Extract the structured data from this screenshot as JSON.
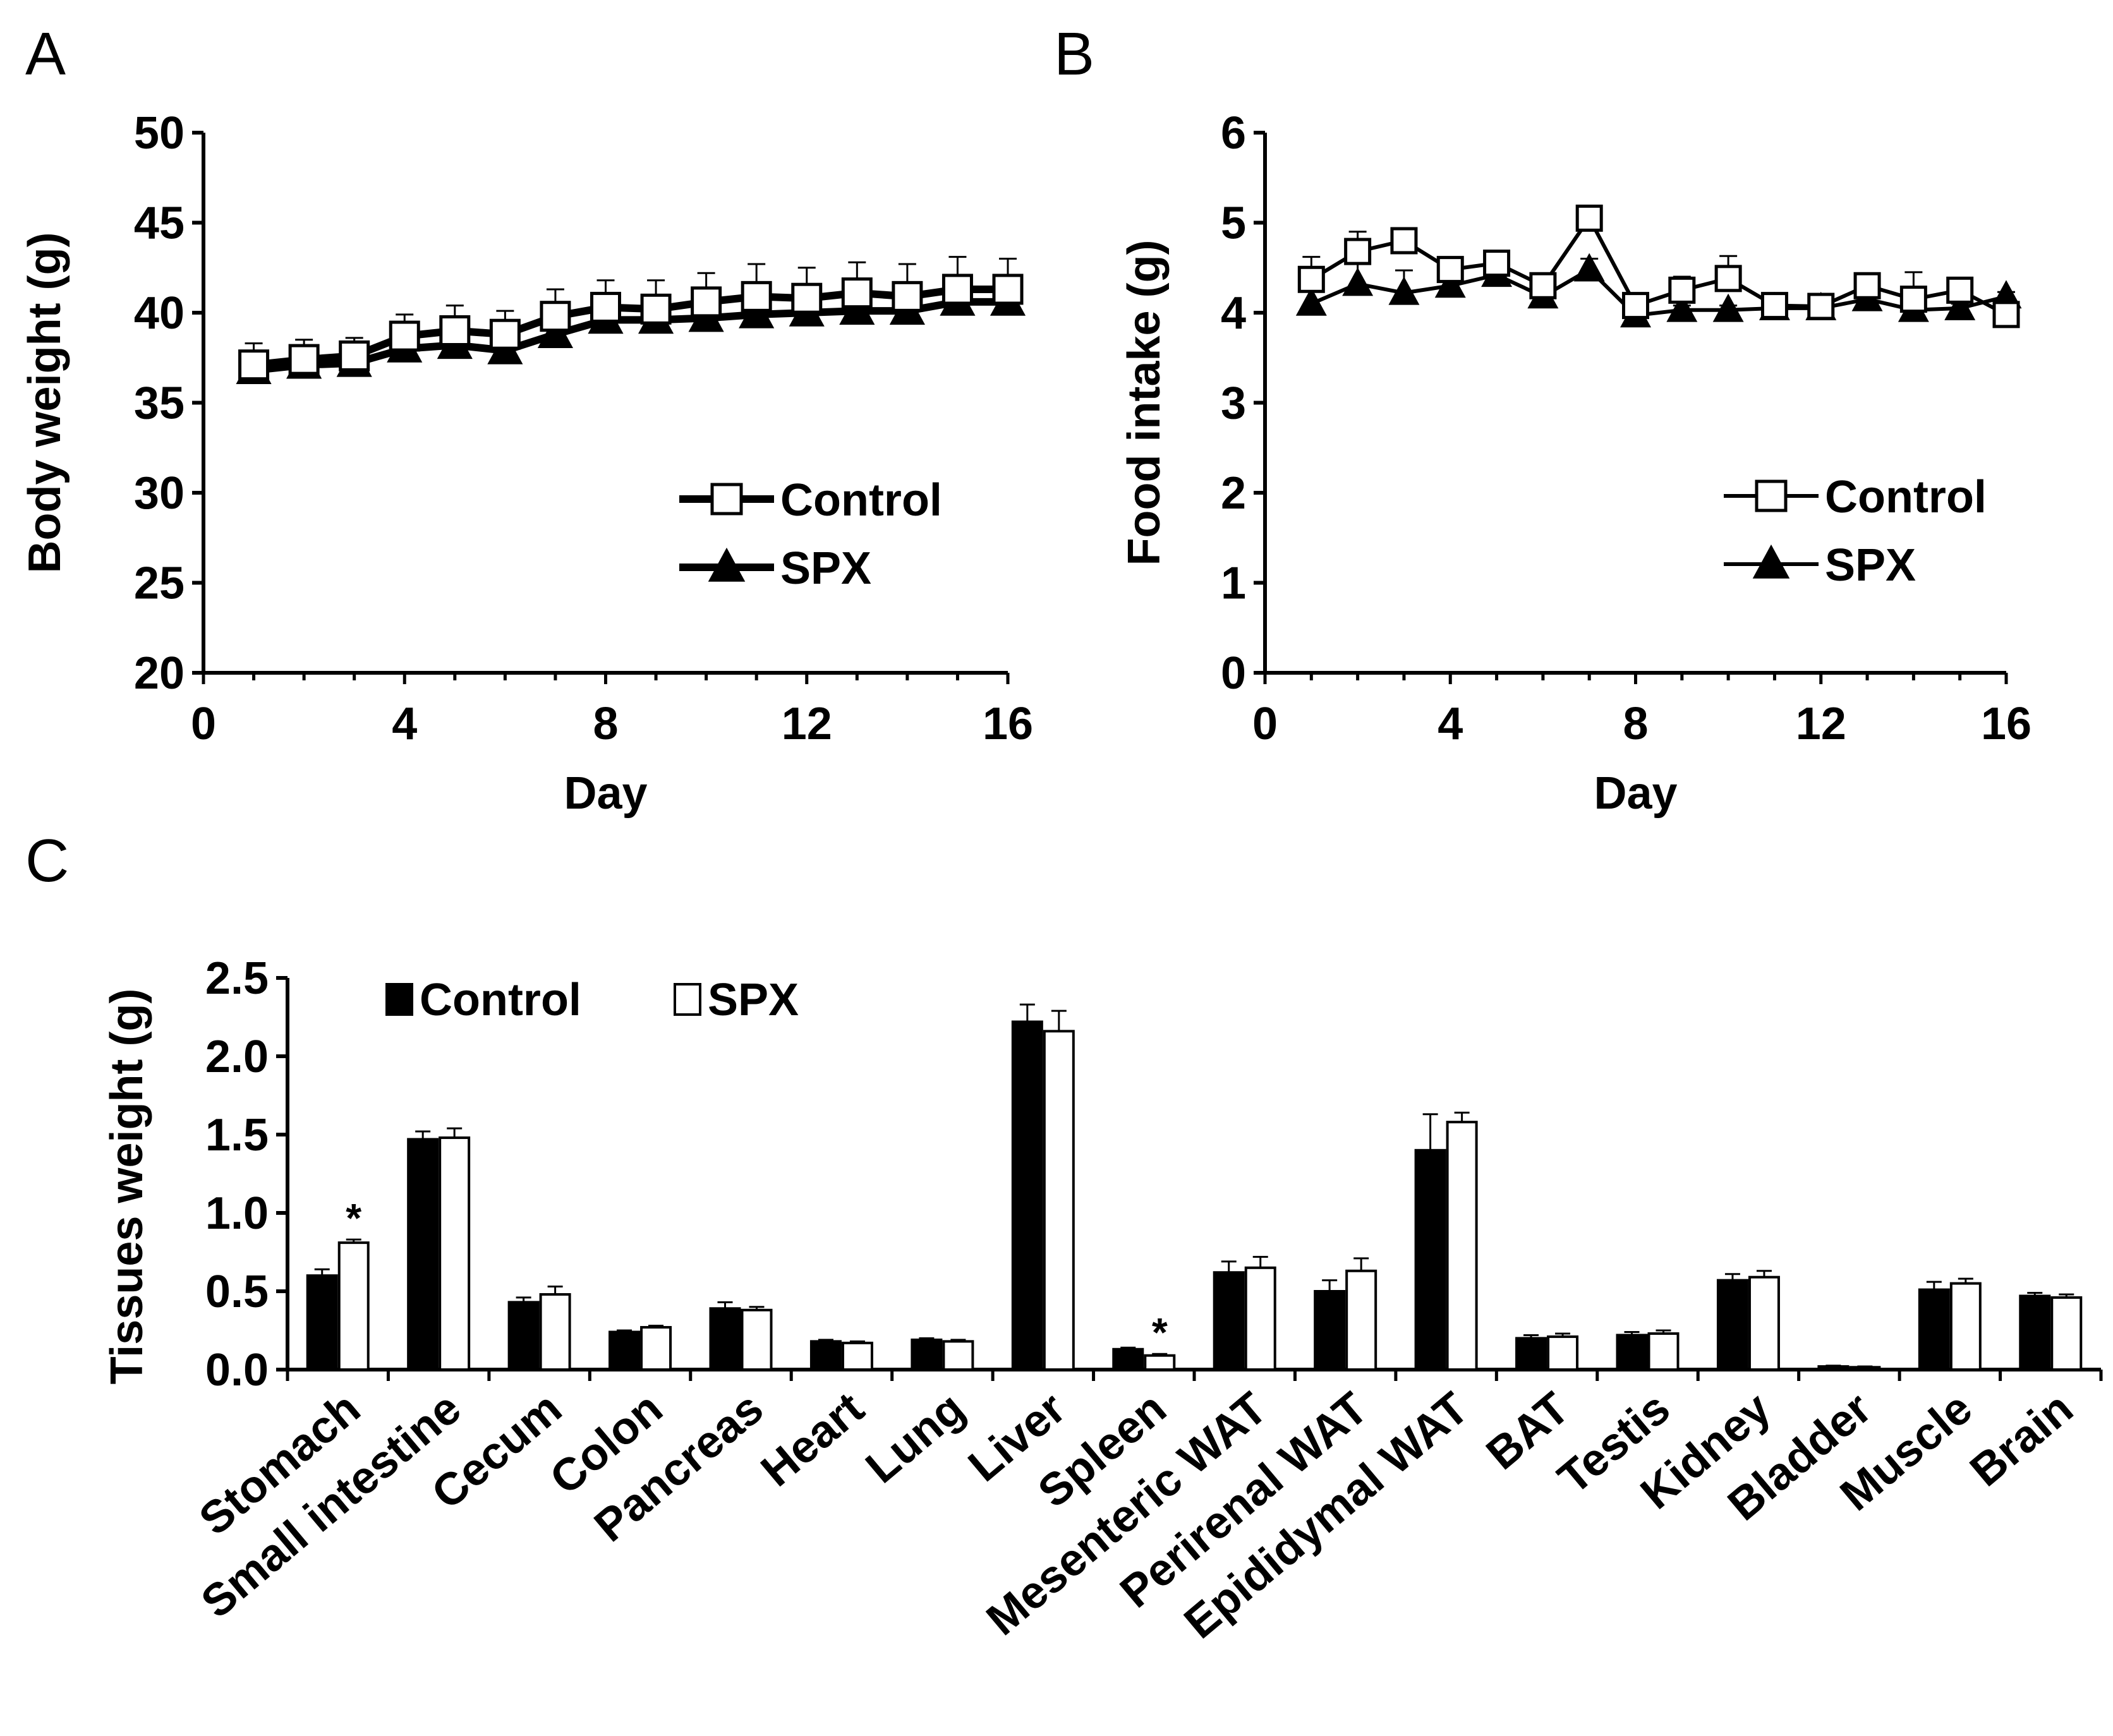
{
  "panels": {
    "a": "A",
    "b": "B",
    "c": "C"
  },
  "chart_data": [
    {
      "type": "line",
      "panel": "A",
      "xlabel": "Day",
      "ylabel": "Body weight (g)",
      "xlim": [
        0,
        16
      ],
      "ylim": [
        20,
        50
      ],
      "xticks": [
        "0",
        "4",
        "8",
        "12",
        "16"
      ],
      "yticks": [
        "20",
        "25",
        "30",
        "35",
        "40",
        "45",
        "50"
      ],
      "legend_position": "center-right",
      "x": [
        1,
        2,
        3,
        4,
        5,
        6,
        7,
        8,
        9,
        10,
        11,
        12,
        13,
        14,
        15,
        16
      ],
      "series": [
        {
          "name": "Control",
          "marker": "open-square",
          "values": [
            37.1,
            37.4,
            37.6,
            38.7,
            39.0,
            38.8,
            39.8,
            40.3,
            40.2,
            40.6,
            40.9,
            40.8,
            41.1,
            40.9,
            41.3,
            41.3
          ],
          "errors": [
            1.2,
            1.1,
            1.0,
            1.2,
            1.4,
            1.3,
            1.5,
            1.5,
            1.6,
            1.6,
            1.8,
            1.7,
            1.7,
            1.8,
            1.8,
            1.7
          ]
        },
        {
          "name": "SPX",
          "marker": "filled-triangle",
          "values": [
            36.8,
            37.1,
            37.2,
            38.0,
            38.2,
            37.9,
            38.8,
            39.6,
            39.6,
            39.7,
            39.9,
            40.0,
            40.1,
            40.1,
            40.6,
            40.6
          ],
          "errors": [
            0.6,
            0.6,
            0.6,
            0.7,
            0.7,
            0.7,
            0.7,
            0.8,
            0.7,
            0.7,
            0.7,
            0.7,
            0.7,
            0.7,
            0.7,
            0.7
          ]
        }
      ]
    },
    {
      "type": "line",
      "panel": "B",
      "xlabel": "Day",
      "ylabel": "Food intake (g)",
      "xlim": [
        0,
        16
      ],
      "ylim": [
        0,
        6
      ],
      "xticks": [
        "0",
        "4",
        "8",
        "12",
        "16"
      ],
      "yticks": [
        "0",
        "1",
        "2",
        "3",
        "4",
        "5",
        "6"
      ],
      "legend_position": "center-right",
      "x": [
        1,
        2,
        3,
        4,
        5,
        6,
        7,
        8,
        9,
        10,
        11,
        12,
        13,
        14,
        15,
        16
      ],
      "series": [
        {
          "name": "Control",
          "marker": "open-square",
          "values": [
            4.37,
            4.68,
            4.8,
            4.48,
            4.55,
            4.3,
            5.05,
            4.08,
            4.25,
            4.38,
            4.08,
            4.07,
            4.3,
            4.15,
            4.25,
            3.98
          ],
          "errors": [
            0.25,
            0.22,
            0.05,
            0.12,
            0.1,
            0.08,
            0.05,
            0.1,
            0.15,
            0.25,
            0.1,
            0.1,
            0.1,
            0.3,
            0.1,
            0.05
          ]
        },
        {
          "name": "SPX",
          "marker": "filled-triangle",
          "values": [
            4.1,
            4.32,
            4.22,
            4.3,
            4.42,
            4.18,
            4.48,
            3.97,
            4.03,
            4.03,
            4.05,
            4.05,
            4.15,
            4.03,
            4.05,
            4.18
          ],
          "errors": [
            0.18,
            0.25,
            0.25,
            0.1,
            0.18,
            0.12,
            0.12,
            0.1,
            0.05,
            0.05,
            0.05,
            0.05,
            0.05,
            0.05,
            0.05,
            0.05
          ]
        }
      ]
    },
    {
      "type": "bar",
      "panel": "C",
      "ylabel": "Tissues weight (g)",
      "ylim": [
        0,
        2.5
      ],
      "yticks": [
        "0.0",
        "0.5",
        "1.0",
        "1.5",
        "2.0",
        "2.5"
      ],
      "legend_position": "top-left",
      "categories": [
        "Stomach",
        "Small intestine",
        "Cecum",
        "Colon",
        "Pancreas",
        "Heart",
        "Lung",
        "Liver",
        "Spleen",
        "Mesenteric WAT",
        "Perirenal WAT",
        "Epididymal WAT",
        "BAT",
        "Testis",
        "Kidney",
        "Bladder",
        "Muscle",
        "Brain"
      ],
      "series": [
        {
          "name": "Control",
          "fill": "filled",
          "values": [
            0.6,
            1.47,
            0.43,
            0.24,
            0.39,
            0.18,
            0.19,
            2.22,
            0.13,
            0.62,
            0.5,
            1.4,
            0.2,
            0.22,
            0.57,
            0.02,
            0.51,
            0.47
          ],
          "errors": [
            0.04,
            0.05,
            0.03,
            0.01,
            0.04,
            0.01,
            0.01,
            0.11,
            0.01,
            0.07,
            0.07,
            0.23,
            0.02,
            0.02,
            0.04,
            0.005,
            0.05,
            0.02
          ]
        },
        {
          "name": "SPX",
          "fill": "open",
          "values": [
            0.81,
            1.48,
            0.48,
            0.27,
            0.38,
            0.17,
            0.18,
            2.16,
            0.09,
            0.65,
            0.63,
            1.58,
            0.21,
            0.23,
            0.59,
            0.015,
            0.55,
            0.46
          ],
          "errors": [
            0.02,
            0.06,
            0.05,
            0.01,
            0.02,
            0.01,
            0.01,
            0.13,
            0.01,
            0.07,
            0.08,
            0.06,
            0.02,
            0.02,
            0.04,
            0.005,
            0.03,
            0.02
          ]
        }
      ],
      "annotations": [
        {
          "category": "Stomach",
          "text": "*"
        },
        {
          "category": "Spleen",
          "text": "*"
        }
      ]
    }
  ]
}
